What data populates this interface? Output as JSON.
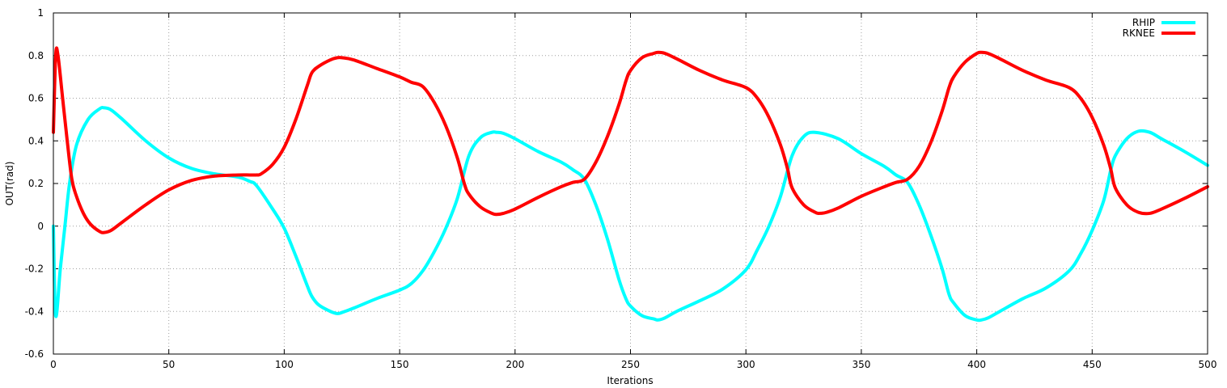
{
  "chart_data": {
    "type": "line",
    "title": "",
    "xlabel": "Iterations",
    "ylabel": "OUT(rad)",
    "xlim": [
      0,
      500
    ],
    "ylim": [
      -0.6,
      1
    ],
    "xticks": [
      0,
      50,
      100,
      150,
      200,
      250,
      300,
      350,
      400,
      450,
      500
    ],
    "xtick_labels": [
      "0",
      "50",
      "100",
      "150",
      "200",
      "250",
      "300",
      "350",
      "400",
      "450",
      "500"
    ],
    "yticks": [
      -0.6,
      -0.4,
      -0.2,
      0,
      0.2,
      0.4,
      0.6,
      0.8,
      1
    ],
    "ytick_labels": [
      "-0.6",
      "-0.4",
      "-0.2",
      "0",
      "0.2",
      "0.4",
      "0.6",
      "0.8",
      "1"
    ],
    "grid": true,
    "legend_position": "top-right",
    "series": [
      {
        "name": "RHIP",
        "color": "#00ffff",
        "x": [
          0,
          1,
          3,
          5,
          7,
          10,
          15,
          20,
          22,
          25,
          30,
          40,
          50,
          60,
          70,
          80,
          85,
          88,
          95,
          100,
          105,
          110,
          112,
          115,
          120,
          123,
          125,
          130,
          140,
          150,
          155,
          160,
          165,
          170,
          175,
          180,
          185,
          190,
          192,
          195,
          200,
          210,
          220,
          225,
          230,
          235,
          240,
          245,
          248,
          250,
          255,
          260,
          262,
          265,
          270,
          280,
          290,
          300,
          305,
          310,
          315,
          320,
          325,
          330,
          340,
          350,
          360,
          365,
          370,
          375,
          380,
          385,
          388,
          390,
          395,
          400,
          402,
          405,
          410,
          420,
          430,
          440,
          445,
          450,
          455,
          458,
          460,
          465,
          470,
          475,
          480,
          490,
          500
        ],
        "values": [
          0,
          -0.42,
          -0.2,
          0.0,
          0.2,
          0.38,
          0.5,
          0.55,
          0.555,
          0.545,
          0.5,
          0.4,
          0.32,
          0.27,
          0.245,
          0.23,
          0.21,
          0.19,
          0.08,
          -0.01,
          -0.14,
          -0.28,
          -0.33,
          -0.37,
          -0.4,
          -0.41,
          -0.405,
          -0.385,
          -0.34,
          -0.3,
          -0.27,
          -0.21,
          -0.12,
          -0.01,
          0.13,
          0.33,
          0.415,
          0.44,
          0.44,
          0.435,
          0.41,
          0.35,
          0.3,
          0.265,
          0.22,
          0.1,
          -0.06,
          -0.25,
          -0.34,
          -0.375,
          -0.42,
          -0.435,
          -0.44,
          -0.43,
          -0.4,
          -0.35,
          -0.295,
          -0.205,
          -0.11,
          0.0,
          0.14,
          0.33,
          0.42,
          0.44,
          0.41,
          0.34,
          0.28,
          0.24,
          0.205,
          0.1,
          -0.04,
          -0.2,
          -0.32,
          -0.36,
          -0.42,
          -0.44,
          -0.44,
          -0.43,
          -0.4,
          -0.34,
          -0.29,
          -0.21,
          -0.13,
          -0.02,
          0.12,
          0.26,
          0.33,
          0.41,
          0.445,
          0.44,
          0.41,
          0.35,
          0.285
        ]
      },
      {
        "name": "RKNEE",
        "color": "#ff0000",
        "x": [
          0,
          1,
          2,
          4,
          6,
          8,
          10,
          13,
          16,
          20,
          22,
          25,
          30,
          40,
          50,
          60,
          70,
          80,
          85,
          88,
          90,
          95,
          100,
          105,
          110,
          112,
          115,
          120,
          123,
          125,
          130,
          140,
          150,
          155,
          160,
          165,
          170,
          175,
          178,
          180,
          185,
          190,
          192,
          195,
          200,
          210,
          220,
          225,
          230,
          235,
          240,
          245,
          248,
          250,
          255,
          260,
          262,
          265,
          270,
          280,
          290,
          300,
          305,
          310,
          315,
          318,
          320,
          325,
          330,
          332,
          335,
          340,
          350,
          360,
          365,
          370,
          375,
          380,
          385,
          388,
          390,
          395,
          400,
          402,
          405,
          410,
          420,
          430,
          440,
          445,
          450,
          455,
          458,
          460,
          465,
          470,
          475,
          480,
          490,
          500
        ],
        "values": [
          0.44,
          0.8,
          0.8,
          0.6,
          0.4,
          0.22,
          0.14,
          0.06,
          0.01,
          -0.025,
          -0.03,
          -0.02,
          0.02,
          0.1,
          0.17,
          0.215,
          0.235,
          0.24,
          0.24,
          0.24,
          0.245,
          0.29,
          0.37,
          0.5,
          0.66,
          0.72,
          0.75,
          0.78,
          0.79,
          0.79,
          0.78,
          0.74,
          0.7,
          0.675,
          0.655,
          0.58,
          0.47,
          0.32,
          0.2,
          0.15,
          0.09,
          0.06,
          0.055,
          0.06,
          0.08,
          0.135,
          0.185,
          0.205,
          0.22,
          0.3,
          0.42,
          0.57,
          0.68,
          0.73,
          0.79,
          0.81,
          0.815,
          0.81,
          0.785,
          0.73,
          0.685,
          0.65,
          0.6,
          0.51,
          0.38,
          0.27,
          0.18,
          0.1,
          0.065,
          0.06,
          0.065,
          0.085,
          0.14,
          0.185,
          0.205,
          0.22,
          0.28,
          0.39,
          0.54,
          0.65,
          0.7,
          0.77,
          0.81,
          0.815,
          0.81,
          0.785,
          0.73,
          0.685,
          0.65,
          0.6,
          0.51,
          0.38,
          0.27,
          0.18,
          0.1,
          0.065,
          0.06,
          0.08,
          0.13,
          0.185
        ]
      }
    ]
  }
}
